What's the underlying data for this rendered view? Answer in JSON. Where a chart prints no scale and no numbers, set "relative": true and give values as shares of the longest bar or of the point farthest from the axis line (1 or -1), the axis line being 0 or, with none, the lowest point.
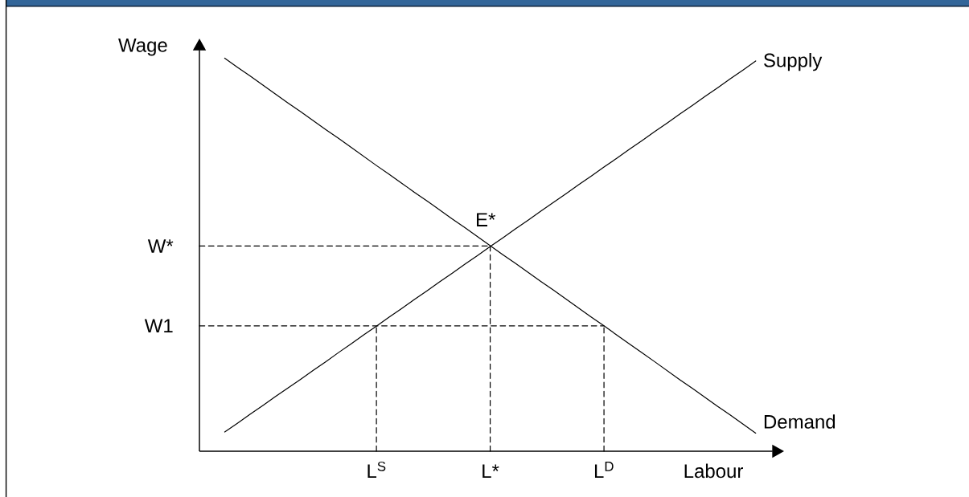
{
  "chart_data": {
    "type": "line",
    "relative": true,
    "xlabel": "Labour",
    "ylabel": "Wage",
    "categories": [
      null,
      null,
      null,
      null,
      null,
      null,
      null,
      null,
      null,
      null,
      null,
      null,
      null,
      null,
      "L$^{S}$",
      null,
      null,
      null,
      null,
      null,
      null,
      null,
      null,
      "L*",
      null,
      null,
      null,
      null,
      null,
      null,
      null,
      null,
      "L$^{D}$",
      null,
      null,
      null,
      null,
      null,
      null,
      null,
      null,
      null,
      null,
      null,
      null
    ],
    "series": [
      {
        "name": "Supply",
        "color": "#000000",
        "values": [
          null,
          null,
          0.049,
          0.071,
          0.094,
          0.116,
          0.139,
          0.161,
          0.183,
          0.206,
          0.228,
          0.251,
          0.273,
          0.296,
          0.318,
          0.341,
          0.363,
          0.386,
          0.408,
          0.431,
          0.453,
          0.476,
          0.498,
          0.521,
          0.543,
          0.566,
          0.588,
          0.611,
          0.633,
          0.655,
          0.678,
          0.7,
          0.723,
          0.745,
          0.768,
          0.79,
          0.813,
          0.835,
          0.858,
          0.88,
          0.903,
          0.925,
          0.948,
          0.97,
          0.993
        ]
      },
      {
        "name": "Demand",
        "color": "#000000",
        "values": [
          null,
          null,
          1,
          0.977,
          0.955,
          0.932,
          0.909,
          0.886,
          0.864,
          0.841,
          0.818,
          0.796,
          0.773,
          0.75,
          0.727,
          0.705,
          0.682,
          0.659,
          0.637,
          0.614,
          0.591,
          0.569,
          0.546,
          0.523,
          0.5,
          0.478,
          0.455,
          0.432,
          0.41,
          0.387,
          0.364,
          0.341,
          0.319,
          0.296,
          0.273,
          0.251,
          0.228,
          0.205,
          0.182,
          0.16,
          0.137,
          0.114,
          0.092,
          0.069,
          0.046
        ]
      },
      {
        "name": "W*",
        "color": "#000000",
        "line_style": "dashed",
        "values": [
          0.522,
          0.522,
          0.522,
          0.522,
          0.522,
          0.522,
          0.522,
          0.522,
          0.522,
          0.522,
          0.522,
          0.522,
          0.522,
          0.522,
          0.522,
          0.522,
          0.522,
          0.522,
          0.522,
          0.522,
          0.522,
          0.522,
          0.522,
          0.522,
          null,
          null,
          null,
          null,
          null,
          null,
          null,
          null,
          null,
          null,
          null,
          null,
          null,
          null,
          null,
          null,
          null,
          null,
          null,
          null,
          null
        ]
      },
      {
        "name": "W1",
        "color": "#000000",
        "line_style": "dashed",
        "values": [
          0.319,
          0.319,
          0.319,
          0.319,
          0.319,
          0.319,
          0.319,
          0.319,
          0.319,
          0.319,
          0.319,
          0.319,
          0.319,
          0.319,
          0.319,
          0.319,
          0.319,
          0.319,
          0.319,
          0.319,
          0.319,
          0.319,
          0.319,
          0.319,
          0.319,
          0.319,
          0.319,
          0.319,
          0.319,
          0.319,
          0.319,
          0.319,
          0.319,
          null,
          null,
          null,
          null,
          null,
          null,
          null,
          null,
          null,
          null,
          null,
          null
        ]
      },
      {
        "color": "#000000",
        "line_style": "dashed",
        "x": [
          "L$^{S}$",
          "L$^{S}$"
        ],
        "values": [
          0,
          0.319
        ]
      },
      {
        "color": "#000000",
        "line_style": "dashed",
        "x": [
          "L*",
          "L*"
        ],
        "values": [
          0,
          0.522
        ]
      },
      {
        "color": "#000000",
        "line_style": "dashed",
        "x": [
          "L$^{D}$",
          "L$^{D}$"
        ],
        "values": [
          0,
          0.319
        ]
      }
    ],
    "annotations": [
      {
        "text": "E*",
        "x": "L*",
        "y": 0.522
      }
    ],
    "line_style": "solid",
    "marker": "none"
  }
}
